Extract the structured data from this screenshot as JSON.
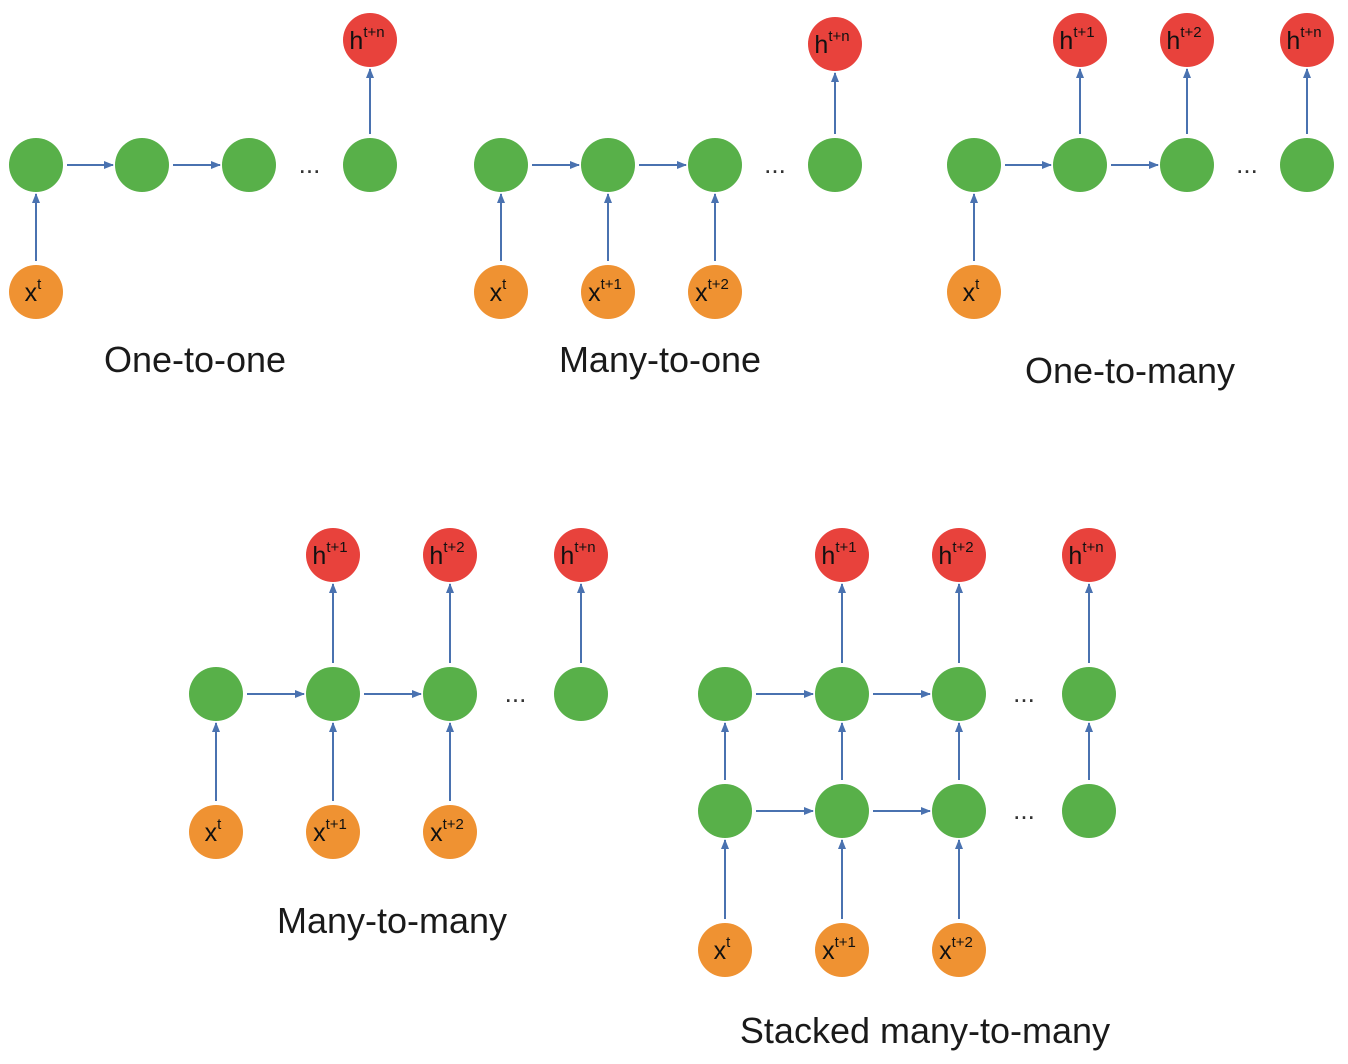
{
  "colors": {
    "hidden": "#58b049",
    "input": "#ef9232",
    "output": "#e8423c",
    "edge": "#4a72b0"
  },
  "diagrams": [
    {
      "caption": "One-to-one",
      "inputs": [
        {
          "base": "x",
          "sup": "t"
        }
      ],
      "outputs": [
        {
          "base": "h",
          "sup": "t+n"
        }
      ]
    },
    {
      "caption": "Many-to-one",
      "inputs": [
        {
          "base": "x",
          "sup": "t"
        },
        {
          "base": "x",
          "sup": "t+1"
        },
        {
          "base": "x",
          "sup": "t+2"
        }
      ],
      "outputs": [
        {
          "base": "h",
          "sup": "t+n"
        }
      ]
    },
    {
      "caption": "One-to-many",
      "inputs": [
        {
          "base": "x",
          "sup": "t"
        }
      ],
      "outputs": [
        {
          "base": "h",
          "sup": "t+1"
        },
        {
          "base": "h",
          "sup": "t+2"
        },
        {
          "base": "h",
          "sup": "t+n"
        }
      ]
    },
    {
      "caption": "Many-to-many",
      "inputs": [
        {
          "base": "x",
          "sup": "t"
        },
        {
          "base": "x",
          "sup": "t+1"
        },
        {
          "base": "x",
          "sup": "t+2"
        }
      ],
      "outputs": [
        {
          "base": "h",
          "sup": "t+1"
        },
        {
          "base": "h",
          "sup": "t+2"
        },
        {
          "base": "h",
          "sup": "t+n"
        }
      ]
    },
    {
      "caption": "Stacked many-to-many",
      "inputs": [
        {
          "base": "x",
          "sup": "t"
        },
        {
          "base": "x",
          "sup": "t+1"
        },
        {
          "base": "x",
          "sup": "t+2"
        }
      ],
      "outputs": [
        {
          "base": "h",
          "sup": "t+1"
        },
        {
          "base": "h",
          "sup": "t+2"
        },
        {
          "base": "h",
          "sup": "t+n"
        }
      ]
    }
  ],
  "ellipsis": "..."
}
